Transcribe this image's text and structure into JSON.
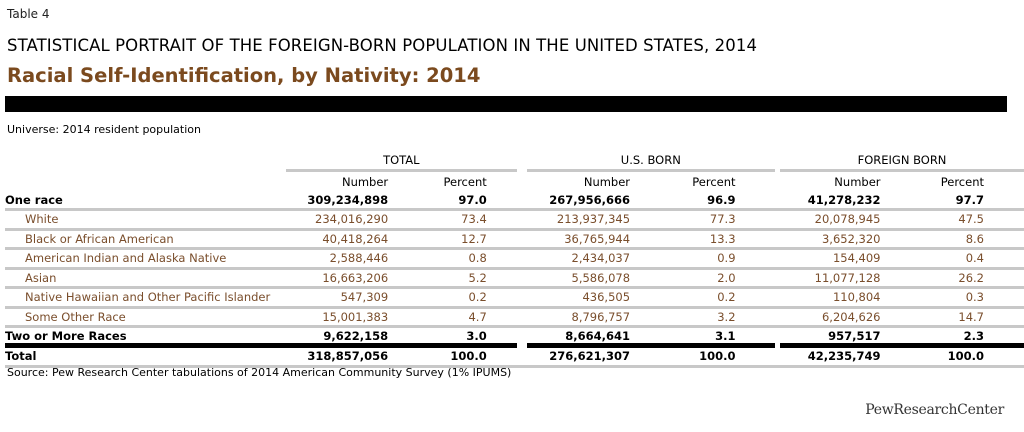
{
  "table_label": "Table 4",
  "title": "STATISTICAL PORTRAIT OF THE FOREIGN-BORN POPULATION IN THE UNITED STATES, 2014",
  "subtitle": "Racial Self-Identification, by Nativity: 2014",
  "universe": "Universe: 2014 resident population",
  "groups": [
    "TOTAL",
    "U.S. BORN",
    "FOREIGN BORN"
  ],
  "subheaders": {
    "number": "Number",
    "percent": "Percent"
  },
  "rows": [
    {
      "label": "One race",
      "cells": [
        "309,234,898",
        "97.0",
        "267,956,666",
        "96.9",
        "41,278,232",
        "97.7"
      ]
    },
    {
      "label": "White",
      "cells": [
        "234,016,290",
        "73.4",
        "213,937,345",
        "77.3",
        "20,078,945",
        "47.5"
      ]
    },
    {
      "label": "Black or African American",
      "cells": [
        "40,418,264",
        "12.7",
        "36,765,944",
        "13.3",
        "3,652,320",
        "8.6"
      ]
    },
    {
      "label": "American Indian and Alaska Native",
      "cells": [
        "2,588,446",
        "0.8",
        "2,434,037",
        "0.9",
        "154,409",
        "0.4"
      ]
    },
    {
      "label": "Asian",
      "cells": [
        "16,663,206",
        "5.2",
        "5,586,078",
        "2.0",
        "11,077,128",
        "26.2"
      ]
    },
    {
      "label": "Native Hawaiian and Other Pacific Islander",
      "cells": [
        "547,309",
        "0.2",
        "436,505",
        "0.2",
        "110,804",
        "0.3"
      ]
    },
    {
      "label": "Some Other Race",
      "cells": [
        "15,001,383",
        "4.7",
        "8,796,757",
        "3.2",
        "6,204,626",
        "14.7"
      ]
    },
    {
      "label": "Two or More Races",
      "cells": [
        "9,622,158",
        "3.0",
        "8,664,641",
        "3.1",
        "957,517",
        "2.3"
      ]
    },
    {
      "label": "Total",
      "cells": [
        "318,857,056",
        "100.0",
        "276,621,307",
        "100.0",
        "42,235,749",
        "100.0"
      ]
    }
  ],
  "source": "Source: Pew Research Center tabulations of 2014 American Community Survey (1% IPUMS)",
  "logo": "PewResearchCenter",
  "colors": {
    "subtitle": "#7b4a1e",
    "subrow_text": "#7a4e2c",
    "rule": "#c8c8c8"
  }
}
